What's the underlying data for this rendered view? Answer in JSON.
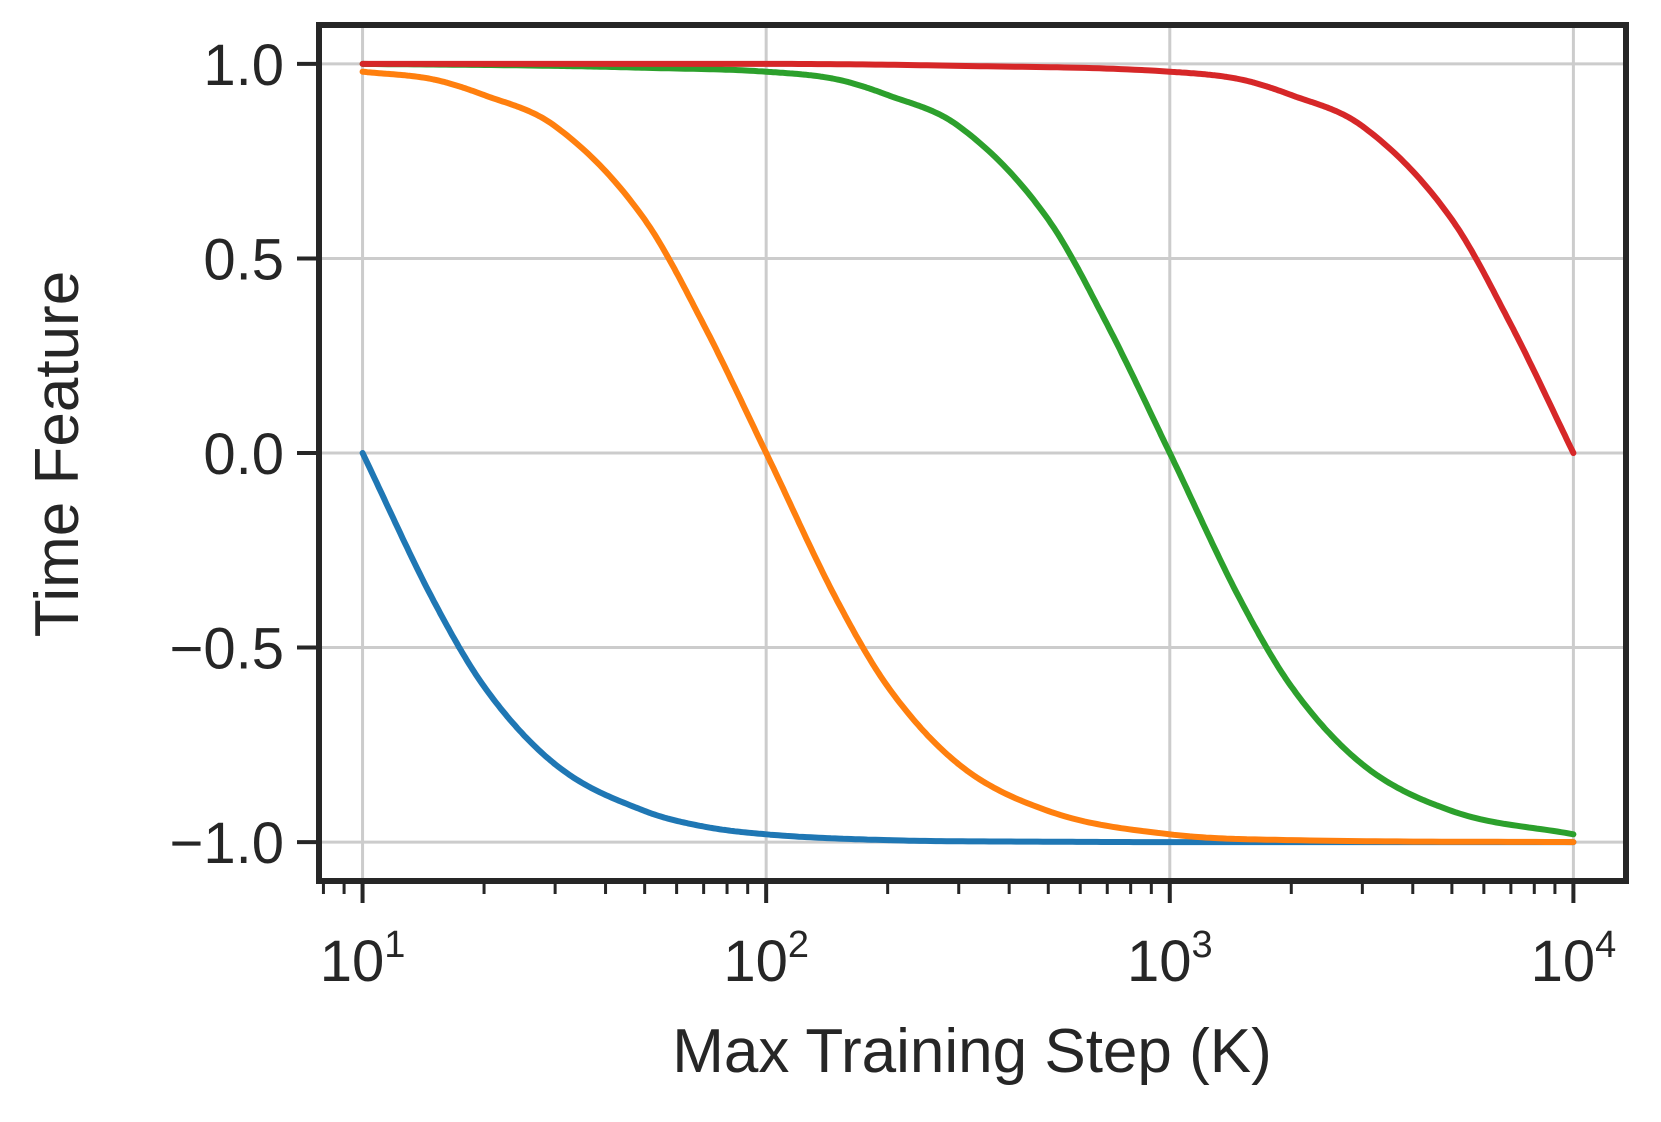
{
  "chart_data": {
    "type": "line",
    "xlabel": "Max Training Step (K)",
    "ylabel": "Time Feature",
    "xscale": "log",
    "xlim": [
      7.8,
      13500
    ],
    "ylim": [
      -1.1,
      1.1
    ],
    "grid": true,
    "x_ticks": [
      {
        "value": 10,
        "base": "10",
        "exp": "1"
      },
      {
        "value": 100,
        "base": "10",
        "exp": "2"
      },
      {
        "value": 1000,
        "base": "10",
        "exp": "3"
      },
      {
        "value": 10000,
        "base": "10",
        "exp": "4"
      }
    ],
    "y_ticks": [
      {
        "value": 1.0,
        "label": "1.0"
      },
      {
        "value": 0.5,
        "label": "0.5"
      },
      {
        "value": 0.0,
        "label": "0.0"
      },
      {
        "value": -0.5,
        "label": "−0.5"
      },
      {
        "value": -1.0,
        "label": "−1.0"
      }
    ],
    "series": [
      {
        "color": "#1f77b4",
        "x": [
          10,
          15,
          20,
          30,
          50,
          70,
          100,
          200,
          500,
          1000,
          10000
        ],
        "y": [
          0.0,
          -0.38,
          -0.6,
          -0.8,
          -0.92,
          -0.96,
          -0.98,
          -0.995,
          -0.999,
          -1.0,
          -1.0
        ]
      },
      {
        "color": "#ff7f0e",
        "x": [
          10,
          15,
          20,
          30,
          50,
          70,
          100,
          150,
          200,
          300,
          500,
          1000,
          2000,
          10000
        ],
        "y": [
          0.98,
          0.96,
          0.92,
          0.84,
          0.6,
          0.33,
          0.0,
          -0.38,
          -0.6,
          -0.8,
          -0.92,
          -0.98,
          -0.995,
          -1.0
        ]
      },
      {
        "color": "#2ca02c",
        "x": [
          10,
          30,
          50,
          100,
          150,
          200,
          300,
          500,
          700,
          1000,
          1500,
          2000,
          3000,
          5000,
          10000
        ],
        "y": [
          1.0,
          0.995,
          0.99,
          0.98,
          0.96,
          0.92,
          0.84,
          0.6,
          0.33,
          0.0,
          -0.38,
          -0.6,
          -0.8,
          -0.92,
          -0.98
        ]
      },
      {
        "color": "#d62728",
        "x": [
          10,
          100,
          300,
          1000,
          1500,
          2000,
          3000,
          5000,
          7000,
          10000
        ],
        "y": [
          1.0,
          1.0,
          0.995,
          0.98,
          0.96,
          0.92,
          0.84,
          0.6,
          0.33,
          0.0
        ]
      }
    ]
  }
}
